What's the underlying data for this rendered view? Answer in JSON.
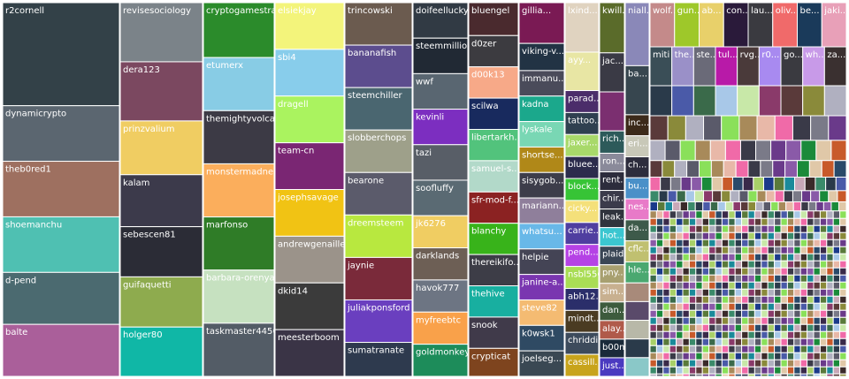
{
  "chart_data": {
    "type": "treemap",
    "columns": [
      {
        "width": 132,
        "tiles": [
          {
            "label": "r2cornell",
            "value": 115,
            "color": "#334148"
          },
          {
            "label": "dynamicrypto",
            "value": 62,
            "color": "#5b6670"
          },
          {
            "label": "theb0red1",
            "value": 62,
            "color": "#9e7060"
          },
          {
            "label": "shoemanchu",
            "value": 62,
            "color": "#4fc0b2"
          },
          {
            "label": "d-pend",
            "value": 58,
            "color": "#4b6a70"
          },
          {
            "label": "balte",
            "value": 58,
            "color": "#aa5f9a"
          }
        ]
      },
      {
        "width": 93,
        "tiles": [
          {
            "label": "revisesociology",
            "value": 66,
            "color": "#7b8389"
          },
          {
            "label": "dera123",
            "value": 66,
            "color": "#7b4860"
          },
          {
            "label": "prinzvalium",
            "value": 60,
            "color": "#f0cd62"
          },
          {
            "label": "kalam",
            "value": 58,
            "color": "#3c3a4b"
          },
          {
            "label": "sebescen81",
            "value": 56,
            "color": "#2b2c36"
          },
          {
            "label": "guifaquetti",
            "value": 56,
            "color": "#8eab4e"
          },
          {
            "label": "holger80",
            "value": 55,
            "color": "#10b7a6"
          }
        ]
      },
      {
        "width": 80,
        "tiles": [
          {
            "label": "cryptogamestrat",
            "value": 62,
            "color": "#2b8b2b"
          },
          {
            "label": "etumerx",
            "value": 60,
            "color": "#88cce5"
          },
          {
            "label": "themightyvolcano",
            "value": 60,
            "color": "#3c3a45"
          },
          {
            "label": "monstermadness",
            "value": 60,
            "color": "#fbae5c"
          },
          {
            "label": "marfonso",
            "value": 60,
            "color": "#2f7c27"
          },
          {
            "label": "barbara-orenya",
            "value": 60,
            "color": "#c6e1c0"
          },
          {
            "label": "taskmaster4450",
            "value": 60,
            "color": "#535c66"
          }
        ]
      },
      {
        "width": 78,
        "tiles": [
          {
            "label": "elsiekjay",
            "value": 55,
            "color": "#f3f47b"
          },
          {
            "label": "sbi4",
            "value": 55,
            "color": "#88cdeb"
          },
          {
            "label": "dragell",
            "value": 55,
            "color": "#aaf35f"
          },
          {
            "label": "team-cn",
            "value": 55,
            "color": "#7a2673"
          },
          {
            "label": "josephsavage",
            "value": 55,
            "color": "#f1c314"
          },
          {
            "label": "andrewgenaille",
            "value": 55,
            "color": "#9b938a"
          },
          {
            "label": "dkid14",
            "value": 55,
            "color": "#3b3b3b"
          },
          {
            "label": "meesterboom",
            "value": 55,
            "color": "#3a3446"
          }
        ]
      },
      {
        "width": 76,
        "tiles": [
          {
            "label": "trincowski",
            "value": 50,
            "color": "#6b5b4f"
          },
          {
            "label": "bananafish",
            "value": 50,
            "color": "#5c4d8e"
          },
          {
            "label": "steemchiller",
            "value": 50,
            "color": "#4a6670"
          },
          {
            "label": "slobberchops",
            "value": 50,
            "color": "#9ea08a"
          },
          {
            "label": "bearone",
            "value": 50,
            "color": "#5b5b6b"
          },
          {
            "label": "dreemsteem",
            "value": 50,
            "color": "#b8e83f"
          },
          {
            "label": "jaynie",
            "value": 50,
            "color": "#7a2a3a"
          },
          {
            "label": "juliakponsford",
            "value": 50,
            "color": "#6a3fbf"
          },
          {
            "label": "sumatranate",
            "value": 40,
            "color": "#2e3a4e"
          }
        ]
      },
      {
        "width": 62,
        "tiles": [
          {
            "label": "doifeellucky",
            "value": 42,
            "color": "#313a44"
          },
          {
            "label": "steemmillio...",
            "value": 42,
            "color": "#212934"
          },
          {
            "label": "wwf",
            "value": 42,
            "color": "#596671"
          },
          {
            "label": "kevinli",
            "value": 42,
            "color": "#7c2ec0"
          },
          {
            "label": "tazi",
            "value": 42,
            "color": "#585e67"
          },
          {
            "label": "soofluffy",
            "value": 42,
            "color": "#5a6a73"
          },
          {
            "label": "jk6276",
            "value": 38,
            "color": "#f0cd62"
          },
          {
            "label": "darklands",
            "value": 38,
            "color": "#6d5f55"
          },
          {
            "label": "havok777",
            "value": 38,
            "color": "#6d7583"
          },
          {
            "label": "myfreebtc",
            "value": 38,
            "color": "#f9a14a"
          },
          {
            "label": "goldmonkey",
            "value": 38,
            "color": "#1d8c5a"
          }
        ]
      },
      {
        "width": 56,
        "tiles": [
          {
            "label": "bluengel",
            "value": 40,
            "color": "#4a2a2e"
          },
          {
            "label": "d0zer",
            "value": 38,
            "color": "#3c3b40"
          },
          {
            "label": "d00k13",
            "value": 38,
            "color": "#f7a988"
          },
          {
            "label": "scilwa",
            "value": 38,
            "color": "#182a5e"
          },
          {
            "label": "libertarkh...",
            "value": 38,
            "color": "#52c37c"
          },
          {
            "label": "samuel-s...",
            "value": 38,
            "color": "#b2d9c9"
          },
          {
            "label": "sfr-mod-f...",
            "value": 38,
            "color": "#8b2222"
          },
          {
            "label": "blanchy",
            "value": 38,
            "color": "#38b31a"
          },
          {
            "label": "thereikifo...",
            "value": 38,
            "color": "#3d3d47"
          },
          {
            "label": "thehive",
            "value": 38,
            "color": "#18afa0"
          },
          {
            "label": "snook",
            "value": 38,
            "color": "#403a4a"
          },
          {
            "label": "crypticat",
            "value": 34,
            "color": "#7e441e"
          }
        ]
      },
      {
        "width": 51,
        "tiles": [
          {
            "label": "gillia...",
            "value": 48,
            "color": "#7a1a54"
          },
          {
            "label": "viking-v...",
            "value": 32,
            "color": "#223344"
          },
          {
            "label": "immanu...",
            "value": 30,
            "color": "#4a4b5a"
          },
          {
            "label": "kadna",
            "value": 30,
            "color": "#1ba88c"
          },
          {
            "label": "lyskale",
            "value": 30,
            "color": "#79d7b4"
          },
          {
            "label": "shortse...",
            "value": 30,
            "color": "#b08818"
          },
          {
            "label": "sisygob...",
            "value": 30,
            "color": "#3d3d4a"
          },
          {
            "label": "mariann...",
            "value": 30,
            "color": "#8f7f9b"
          },
          {
            "label": "whatsu...",
            "value": 30,
            "color": "#68b8e8"
          },
          {
            "label": "helpie",
            "value": 30,
            "color": "#444455"
          },
          {
            "label": "janine-a...",
            "value": 30,
            "color": "#7a36b0"
          },
          {
            "label": "steve82",
            "value": 30,
            "color": "#f4bb72"
          },
          {
            "label": "k0wsk1",
            "value": 30,
            "color": "#2f4a63"
          },
          {
            "label": "joelseg...",
            "value": 30,
            "color": "#3a4853"
          }
        ]
      },
      {
        "width": 38,
        "tiles": [
          {
            "label": "lxind...",
            "value": 54,
            "color": "#e0d3c0"
          },
          {
            "label": "ayy...",
            "value": 42,
            "color": "#e8e6a4"
          },
          {
            "label": "parad...",
            "value": 24,
            "color": "#4b2d6a"
          },
          {
            "label": "tattoo...",
            "value": 24,
            "color": "#2f4050"
          },
          {
            "label": "jaxer...",
            "value": 24,
            "color": "#a8d96a"
          },
          {
            "label": "bluee...",
            "value": 24,
            "color": "#2c2c4c"
          },
          {
            "label": "block...",
            "value": 24,
            "color": "#37c436"
          },
          {
            "label": "cicky...",
            "value": 24,
            "color": "#f4e07a"
          },
          {
            "label": "carrie...",
            "value": 24,
            "color": "#4f3ea0"
          },
          {
            "label": "pend...",
            "value": 24,
            "color": "#b542e5"
          },
          {
            "label": "nsbl556",
            "value": 24,
            "color": "#a9dd55"
          },
          {
            "label": "abh12...",
            "value": 24,
            "color": "#2b2e6a"
          },
          {
            "label": "mindt...",
            "value": 24,
            "color": "#4a3b22"
          },
          {
            "label": "chriddi",
            "value": 24,
            "color": "#3d4b5c"
          },
          {
            "label": "cassill...",
            "value": 24,
            "color": "#c8a41c"
          }
        ]
      },
      {
        "width": 28,
        "tiles": [
          {
            "label": "kwill...",
            "value": 54,
            "color": "#5a6b2a"
          },
          {
            "label": "jac...",
            "value": 42,
            "color": "#3a3a45"
          },
          {
            "label": "",
            "value": 42,
            "color": "#7b2f70"
          },
          {
            "label": "rich...",
            "value": 24,
            "color": "#2d5a5a"
          },
          {
            "label": "ron...",
            "value": 20,
            "color": "#8a8a9a"
          },
          {
            "label": "rent...",
            "value": 20,
            "color": "#2c2c3c"
          },
          {
            "label": "chir...",
            "value": 20,
            "color": "#3b3b4b"
          },
          {
            "label": "leak...",
            "value": 20,
            "color": "#30343d"
          },
          {
            "label": "hot...",
            "value": 20,
            "color": "#3bc6d0"
          },
          {
            "label": "plaid",
            "value": 20,
            "color": "#3a4655"
          },
          {
            "label": "pny...",
            "value": 20,
            "color": "#a8a070"
          },
          {
            "label": "sim...",
            "value": 20,
            "color": "#c8b090"
          },
          {
            "label": "dan...",
            "value": 20,
            "color": "#3d5b3d"
          },
          {
            "label": "alay...",
            "value": 20,
            "color": "#b05a4a"
          },
          {
            "label": "b00m",
            "value": 20,
            "color": "#1a2a3a"
          },
          {
            "label": "just...",
            "value": 20,
            "color": "#4a3ac0"
          }
        ]
      },
      {
        "width": 27,
        "tiles": [
          {
            "label": "niall...",
            "value": 54,
            "color": "#8a88b8"
          },
          {
            "label": "ba...",
            "value": 42,
            "color": "#37464f"
          },
          {
            "label": "inc...",
            "value": 18,
            "color": "#3c2a1a"
          },
          {
            "label": "eri...",
            "value": 18,
            "color": "#c8c8b8"
          },
          {
            "label": "ch...",
            "value": 18,
            "color": "#2d2d3d"
          },
          {
            "label": "bu...",
            "value": 18,
            "color": "#4a90c8"
          },
          {
            "label": "nes...",
            "value": 18,
            "color": "#e87ac8"
          },
          {
            "label": "da...",
            "value": 18,
            "color": "#3d5a4a"
          },
          {
            "label": "cflc...",
            "value": 18,
            "color": "#c0c070"
          },
          {
            "label": "hle...",
            "value": 18,
            "color": "#4aa870"
          },
          {
            "label": "",
            "value": 16,
            "color": "#a88a7a"
          },
          {
            "label": "",
            "value": 16,
            "color": "#5a4a6a"
          },
          {
            "label": "",
            "value": 16,
            "color": "#b8b8a8"
          },
          {
            "label": "",
            "value": 16,
            "color": "#2a3a4a"
          },
          {
            "label": "",
            "value": 16,
            "color": "#8ac8c8"
          }
        ]
      }
    ],
    "upper_row": {
      "tiles": [
        {
          "label": "wolf...",
          "color": "#c48a8a"
        },
        {
          "label": "gun...",
          "color": "#9ec82a"
        },
        {
          "label": "ab...",
          "color": "#e8d06a"
        },
        {
          "label": "con...",
          "color": "#2a1a3a"
        },
        {
          "label": "lau...",
          "color": "#3a3a40"
        },
        {
          "label": "oliv...",
          "color": "#f06a6a"
        },
        {
          "label": "be...",
          "color": "#1a3a5a"
        },
        {
          "label": "jaki...",
          "color": "#e8a0b8"
        }
      ]
    },
    "second_row": {
      "tiles": [
        {
          "label": "miti",
          "color": "#3a4e57"
        },
        {
          "label": "the...",
          "color": "#9a90c8"
        },
        {
          "label": "ste...",
          "color": "#6a6a78"
        },
        {
          "label": "tul...",
          "color": "#b81aa8"
        },
        {
          "label": "rvg...",
          "color": "#4a3a3a"
        },
        {
          "label": "r0...",
          "color": "#a88af0"
        },
        {
          "label": "go...",
          "color": "#3a3a40"
        },
        {
          "label": "wh...",
          "color": "#c89ae8"
        },
        {
          "label": "za...",
          "color": "#3a3030"
        }
      ]
    },
    "small_tiles": {
      "palette": [
        "#2a3a4a",
        "#f06aa8",
        "#1a8a9a",
        "#5a5a6a",
        "#3a2a4a",
        "#8a3a6a",
        "#1a8a3a",
        "#4a5aa8",
        "#3a3a48",
        "#c8a8b8",
        "#8ae05a",
        "#a8d068",
        "#5a3a3a",
        "#e0c8a8",
        "#3a6a4a",
        "#7a7a88",
        "#3a2a2a",
        "#a88a5a",
        "#1a3a8a",
        "#8a8a3a",
        "#c85a2a",
        "#a8c8e8",
        "#6a3a8a",
        "#3a8a6a",
        "#e8b8a8",
        "#5a7a3a",
        "#b0b0c0",
        "#2a4a6a",
        "#c8e8a8",
        "#8a5aa8"
      ]
    }
  }
}
